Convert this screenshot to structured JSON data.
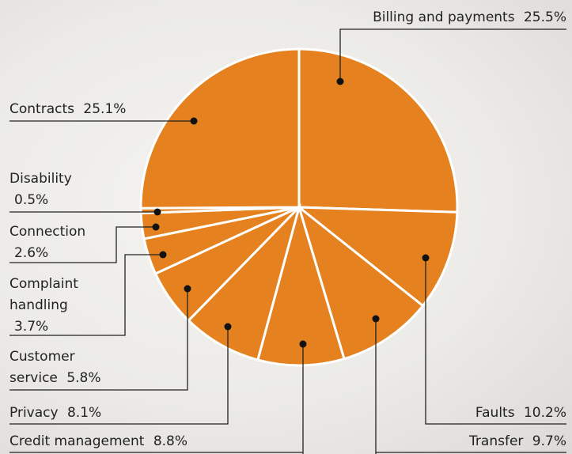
{
  "chart_data": {
    "type": "pie",
    "categories": [
      "Billing and payments",
      "Faults",
      "Transfer",
      "Credit management",
      "Privacy",
      "Customer service",
      "Complaint handling",
      "Connection",
      "Disability",
      "Contracts"
    ],
    "values": [
      25.5,
      10.2,
      9.7,
      8.8,
      8.1,
      5.8,
      3.7,
      2.6,
      0.5,
      25.1
    ],
    "value_labels": [
      "25.5%",
      "10.2%",
      "9.7%",
      "8.8%",
      "8.1%",
      "5.8%",
      "3.7%",
      "2.6%",
      "0.5%",
      "25.1%"
    ],
    "color": "#e5821f"
  }
}
